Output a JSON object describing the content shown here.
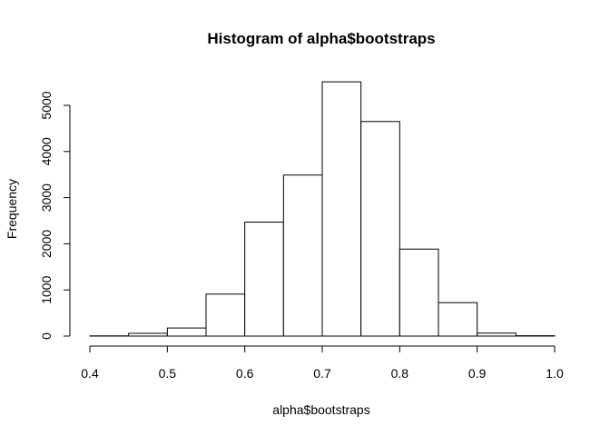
{
  "chart_data": {
    "type": "bar",
    "title": "Histogram of alpha$bootstraps",
    "xlabel": "alpha$bootstraps",
    "ylabel": "Frequency",
    "bin_edges": [
      0.4,
      0.45,
      0.5,
      0.55,
      0.6,
      0.65,
      0.7,
      0.75,
      0.8,
      0.85,
      0.9,
      0.95,
      1.0
    ],
    "values": [
      5,
      60,
      175,
      910,
      2470,
      3490,
      5510,
      4650,
      1885,
      725,
      65,
      8
    ],
    "xlim": [
      0.4,
      1.0
    ],
    "ylim": [
      0,
      5500
    ],
    "x_ticks": [
      0.4,
      0.5,
      0.6,
      0.7,
      0.8,
      0.9,
      1.0
    ],
    "x_tick_labels": [
      "0.4",
      "0.5",
      "0.6",
      "0.7",
      "0.8",
      "0.9",
      "1.0"
    ],
    "y_ticks": [
      0,
      1000,
      2000,
      3000,
      4000,
      5000
    ],
    "y_tick_labels": [
      "0",
      "1000",
      "2000",
      "3000",
      "4000",
      "5000"
    ],
    "grid": false,
    "colors": {
      "bar_fill": "#ffffff",
      "bar_stroke": "#000000"
    }
  }
}
